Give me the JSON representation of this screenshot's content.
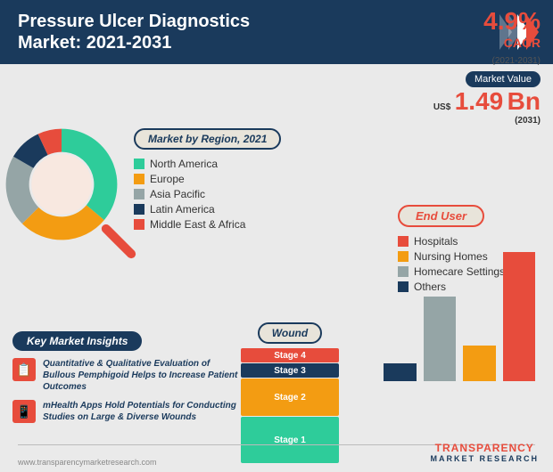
{
  "header": {
    "title_l1": "Pressure Ulcer Diagnostics",
    "title_l2": "Market: 2021-2031"
  },
  "metrics": {
    "cagr_value": "4.9%",
    "cagr_label": "CAGR",
    "cagr_years": "(2021-2031)",
    "mv_badge": "Market Value",
    "mv_prefix": "US$",
    "mv_year": "(2031)",
    "mv_value": "1.49",
    "mv_unit": "Bn"
  },
  "region": {
    "badge": "Market by Region, 2021",
    "items": [
      {
        "label": "North America",
        "color": "#2ecc9a"
      },
      {
        "label": "Europe",
        "color": "#f39c12"
      },
      {
        "label": "Asia Pacific",
        "color": "#95a5a6"
      },
      {
        "label": "Latin America",
        "color": "#1a3a5c"
      },
      {
        "label": "Middle East & Africa",
        "color": "#e74c3c"
      }
    ],
    "donut_segments": [
      {
        "color": "#2ecc9a",
        "start": 0,
        "end": 130
      },
      {
        "color": "#f39c12",
        "start": 130,
        "end": 225
      },
      {
        "color": "#95a5a6",
        "start": 225,
        "end": 300
      },
      {
        "color": "#1a3a5c",
        "start": 300,
        "end": 335
      },
      {
        "color": "#e74c3c",
        "start": 335,
        "end": 360
      }
    ]
  },
  "enduser": {
    "badge": "End User",
    "items": [
      {
        "label": "Hospitals",
        "color": "#e74c3c",
        "value": 145
      },
      {
        "label": "Nursing Homes",
        "color": "#f39c12",
        "value": 40
      },
      {
        "label": "Homecare Settings",
        "color": "#95a5a6",
        "value": 95
      },
      {
        "label": "Others",
        "color": "#1a3a5c",
        "value": 20
      }
    ]
  },
  "wound": {
    "badge": "Wound",
    "stages": [
      {
        "label": "Stage 4",
        "color": "#e74c3c",
        "h": 16
      },
      {
        "label": "Stage 3",
        "color": "#1a3a5c",
        "h": 16
      },
      {
        "label": "Stage 2",
        "color": "#f39c12",
        "h": 42
      },
      {
        "label": "Stage 1",
        "color": "#2ecc9a",
        "h": 52
      }
    ]
  },
  "insights": {
    "badge": "Key Market Insights",
    "items": [
      {
        "icon": "📋",
        "text": "Quantitative & Qualitative Evaluation of Bullous Pemphigoid Helps to Increase Patient Outcomes"
      },
      {
        "icon": "📱",
        "text": "mHealth Apps Hold Potentials for Conducting Studies on Large & Diverse Wounds"
      }
    ]
  },
  "footer": {
    "url": "www.transparencymarketresearch.com",
    "logo_l1": "TRANSPARENCY",
    "logo_l2": "MARKET RESEARCH"
  }
}
